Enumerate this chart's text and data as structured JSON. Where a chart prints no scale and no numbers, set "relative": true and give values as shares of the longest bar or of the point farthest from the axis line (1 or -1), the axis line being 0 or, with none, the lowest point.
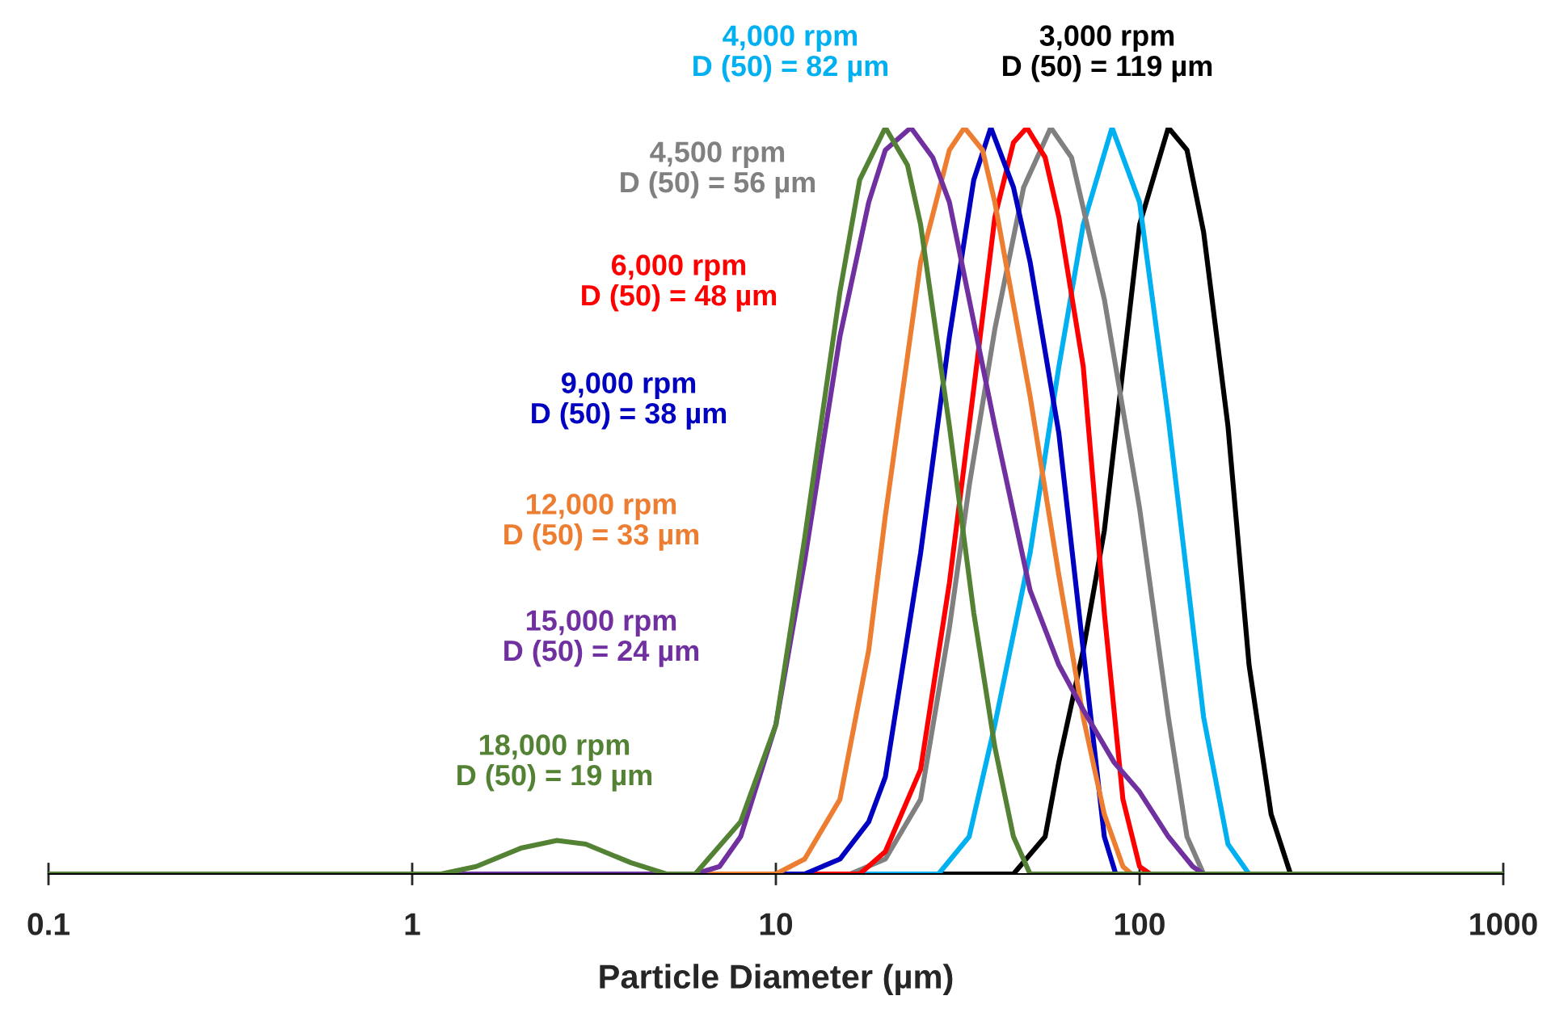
{
  "chart_data": {
    "type": "line",
    "relative": true,
    "xlabel": "Particle Diameter (µm)",
    "log": "x",
    "xlim": [
      0.1,
      1000
    ],
    "xticks": [
      0.1,
      1,
      10,
      100,
      1000
    ],
    "grid": false,
    "legend": false,
    "marker": "none",
    "line_style": "solid",
    "series": [
      {
        "name": "3,000 rpm\nD (50) = 119 µm",
        "color": "#000000",
        "x": [
          0.1,
          45,
          55,
          60,
          70,
          80,
          100,
          120,
          135,
          150,
          175,
          200,
          230,
          260,
          1000
        ],
        "values": [
          0,
          0,
          0.05,
          0.15,
          0.3,
          0.46,
          0.87,
          1,
          0.97,
          0.86,
          0.6,
          0.28,
          0.08,
          0,
          0
        ]
      },
      {
        "name": "4,000 rpm\nD (50) = 82 µm",
        "color": "#00b0f0",
        "x": [
          0.1,
          28,
          34,
          40,
          50,
          60,
          70,
          84,
          100,
          120,
          150,
          175,
          200,
          1000
        ],
        "values": [
          0,
          0,
          0.05,
          0.2,
          0.43,
          0.68,
          0.87,
          1,
          0.9,
          0.61,
          0.21,
          0.04,
          0,
          0
        ]
      },
      {
        "name": "4,500 rpm\nD (50) = 56 µm",
        "color": "#808080",
        "x": [
          0.1,
          16,
          20,
          25,
          30,
          34,
          40,
          48,
          57,
          65,
          80,
          100,
          120,
          135,
          150,
          1000
        ],
        "values": [
          0,
          0,
          0.02,
          0.1,
          0.33,
          0.52,
          0.73,
          0.92,
          1,
          0.96,
          0.77,
          0.49,
          0.21,
          0.05,
          0,
          0
        ]
      },
      {
        "name": "6,000 rpm\nD (50) = 48 µm",
        "color": "#ff0000",
        "x": [
          0.1,
          17,
          20,
          25,
          30,
          35,
          40,
          45,
          49,
          55,
          60,
          70,
          80,
          90,
          100,
          107,
          1000
        ],
        "values": [
          0,
          0,
          0.03,
          0.14,
          0.39,
          0.65,
          0.88,
          0.98,
          1,
          0.96,
          0.88,
          0.68,
          0.35,
          0.1,
          0.01,
          0,
          0
        ]
      },
      {
        "name": "9,000 rpm\nD (50) = 38 µm",
        "color": "#0000c0",
        "x": [
          0.1,
          12,
          15,
          18,
          20,
          25,
          30,
          35,
          39,
          45,
          50,
          60,
          70,
          80,
          86,
          1000
        ],
        "values": [
          0,
          0,
          0.02,
          0.07,
          0.13,
          0.43,
          0.72,
          0.93,
          1,
          0.92,
          0.82,
          0.59,
          0.3,
          0.05,
          0,
          0
        ]
      },
      {
        "name": "12,000 rpm\nD (50) = 33 µm",
        "color": "#ed7d31",
        "x": [
          0.1,
          10,
          12,
          15,
          18,
          20,
          25,
          30,
          33,
          37,
          40,
          50,
          60,
          70,
          80,
          90,
          95,
          1000
        ],
        "values": [
          0,
          0,
          0.02,
          0.1,
          0.3,
          0.48,
          0.82,
          0.97,
          1,
          0.97,
          0.9,
          0.64,
          0.4,
          0.21,
          0.08,
          0.01,
          0,
          0
        ]
      },
      {
        "name": "15,000 rpm\nD (50) = 24 µm",
        "color": "#7030a0",
        "x": [
          0.1,
          6,
          7,
          8,
          10,
          12,
          15,
          18,
          20,
          23.5,
          27,
          30,
          34,
          40,
          50,
          60,
          70,
          85,
          100,
          120,
          140,
          150,
          1000
        ],
        "values": [
          0,
          0,
          0.01,
          0.05,
          0.2,
          0.42,
          0.72,
          0.9,
          0.97,
          1,
          0.96,
          0.9,
          0.77,
          0.6,
          0.38,
          0.28,
          0.22,
          0.15,
          0.11,
          0.05,
          0.01,
          0,
          0
        ]
      },
      {
        "name": "18,000 rpm\nD (50) = 19 µm",
        "color": "#548235",
        "x": [
          0.1,
          1.2,
          1.5,
          2,
          2.5,
          3,
          4,
          5,
          6,
          8,
          10,
          12,
          15,
          17,
          20,
          23,
          25,
          30,
          35,
          40,
          45,
          50,
          1000
        ],
        "values": [
          0,
          0,
          0.01,
          0.035,
          0.045,
          0.04,
          0.015,
          0,
          0,
          0.07,
          0.2,
          0.45,
          0.78,
          0.93,
          1,
          0.95,
          0.87,
          0.6,
          0.35,
          0.17,
          0.05,
          0,
          0
        ]
      }
    ]
  }
}
